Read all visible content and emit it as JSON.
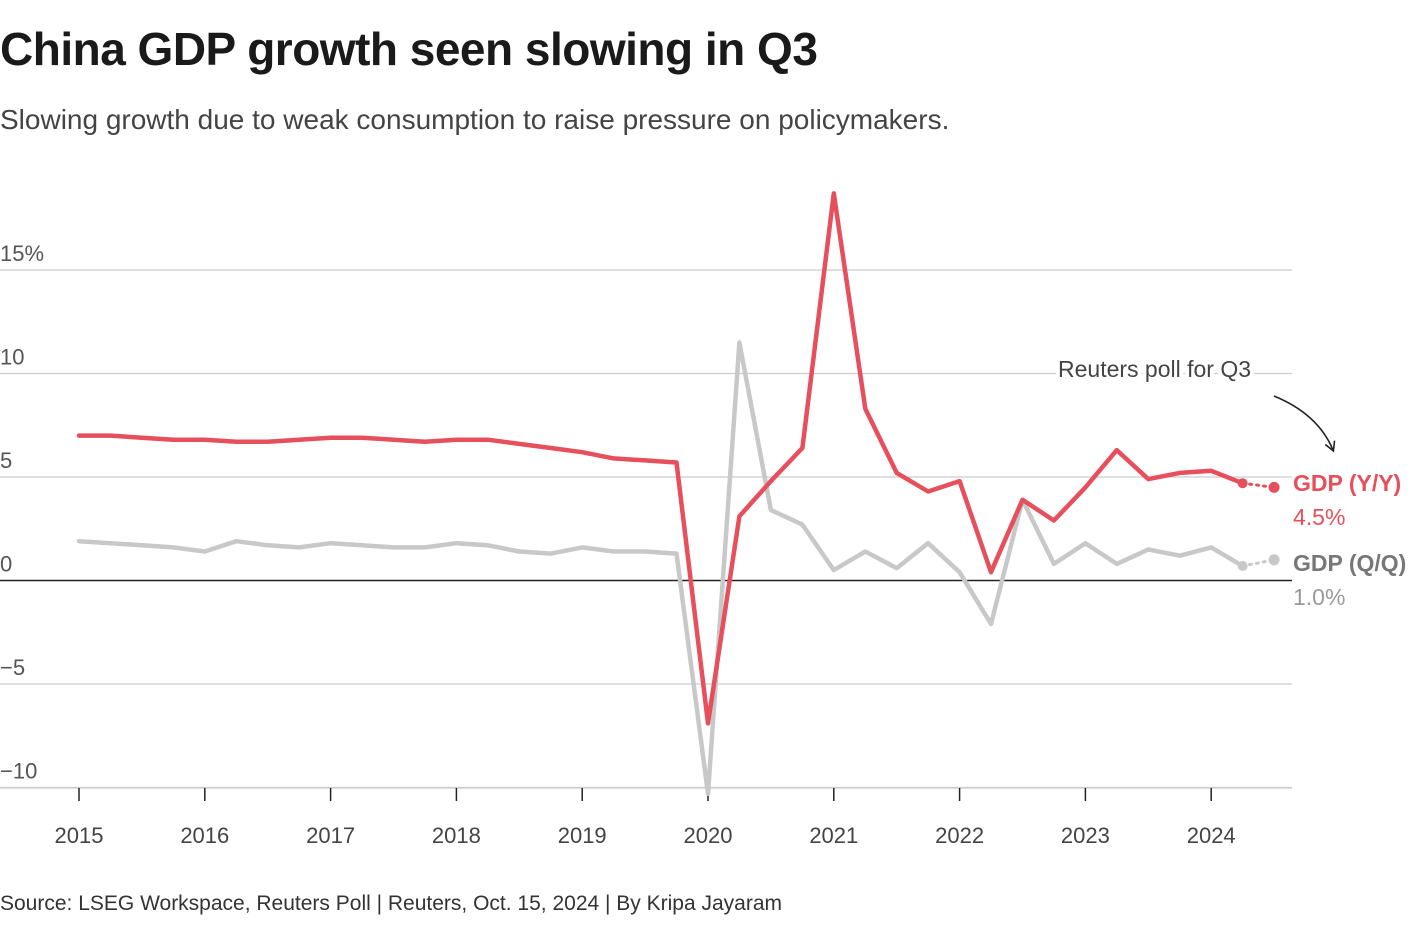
{
  "title": "China GDP growth seen slowing in Q3",
  "subtitle": "Slowing growth due to weak consumption to raise pressure on policymakers.",
  "source": "Source: LSEG Workspace, Reuters Poll | Reuters, Oct. 15, 2024 | By Kripa Jayaram",
  "annotation": "Reuters poll for Q3",
  "colors": {
    "yy": "#e64f5b",
    "qq": "#c8c8c8",
    "qq_label": "#777777",
    "grid": "#cccccc",
    "zero": "#222222"
  },
  "chart_data": {
    "type": "line",
    "title": "China GDP growth seen slowing in Q3",
    "xlabel": "",
    "ylabel": "%",
    "ylim": [
      -10.5,
      18
    ],
    "yticks": [
      {
        "value": 15,
        "label": "15%"
      },
      {
        "value": 10,
        "label": "10"
      },
      {
        "value": 5,
        "label": "5"
      },
      {
        "value": 0,
        "label": "0"
      },
      {
        "value": -5,
        "label": "−5"
      },
      {
        "value": -10,
        "label": "−10"
      }
    ],
    "xticks": [
      {
        "value": 2015.0,
        "label": "2015"
      },
      {
        "value": 2016.0,
        "label": "2016"
      },
      {
        "value": 2017.0,
        "label": "2017"
      },
      {
        "value": 2018.0,
        "label": "2018"
      },
      {
        "value": 2019.0,
        "label": "2019"
      },
      {
        "value": 2020.0,
        "label": "2020"
      },
      {
        "value": 2021.0,
        "label": "2021"
      },
      {
        "value": 2022.0,
        "label": "2022"
      },
      {
        "value": 2023.0,
        "label": "2023"
      },
      {
        "value": 2024.0,
        "label": "2024"
      }
    ],
    "x": [
      2015.0,
      2015.25,
      2015.5,
      2015.75,
      2016.0,
      2016.25,
      2016.5,
      2016.75,
      2017.0,
      2017.25,
      2017.5,
      2017.75,
      2018.0,
      2018.25,
      2018.5,
      2018.75,
      2019.0,
      2019.25,
      2019.5,
      2019.75,
      2020.0,
      2020.25,
      2020.5,
      2020.75,
      2021.0,
      2021.25,
      2021.5,
      2021.75,
      2022.0,
      2022.25,
      2022.5,
      2022.75,
      2023.0,
      2023.25,
      2023.5,
      2023.75,
      2024.0,
      2024.25
    ],
    "series": [
      {
        "name": "GDP (Y/Y)",
        "values": [
          7.0,
          7.0,
          6.9,
          6.8,
          6.8,
          6.7,
          6.7,
          6.8,
          6.9,
          6.9,
          6.8,
          6.7,
          6.8,
          6.8,
          6.6,
          6.4,
          6.2,
          5.9,
          5.8,
          5.7,
          -6.9,
          3.1,
          4.8,
          6.4,
          18.7,
          8.3,
          5.2,
          4.3,
          4.8,
          0.4,
          3.9,
          2.9,
          4.5,
          6.3,
          4.9,
          5.2,
          5.3,
          4.7
        ],
        "forecast": {
          "x": 2024.5,
          "value": 4.5,
          "label": "4.5%"
        }
      },
      {
        "name": "GDP (Q/Q)",
        "values": [
          1.9,
          1.8,
          1.7,
          1.6,
          1.4,
          1.9,
          1.7,
          1.6,
          1.8,
          1.7,
          1.6,
          1.6,
          1.8,
          1.7,
          1.4,
          1.3,
          1.6,
          1.4,
          1.4,
          1.3,
          -10.3,
          11.5,
          3.4,
          2.7,
          0.5,
          1.4,
          0.6,
          1.8,
          0.4,
          -2.1,
          3.9,
          0.8,
          1.8,
          0.8,
          1.5,
          1.2,
          1.6,
          0.7
        ],
        "forecast": {
          "x": 2024.5,
          "value": 1.0,
          "label": "1.0%"
        }
      }
    ]
  }
}
